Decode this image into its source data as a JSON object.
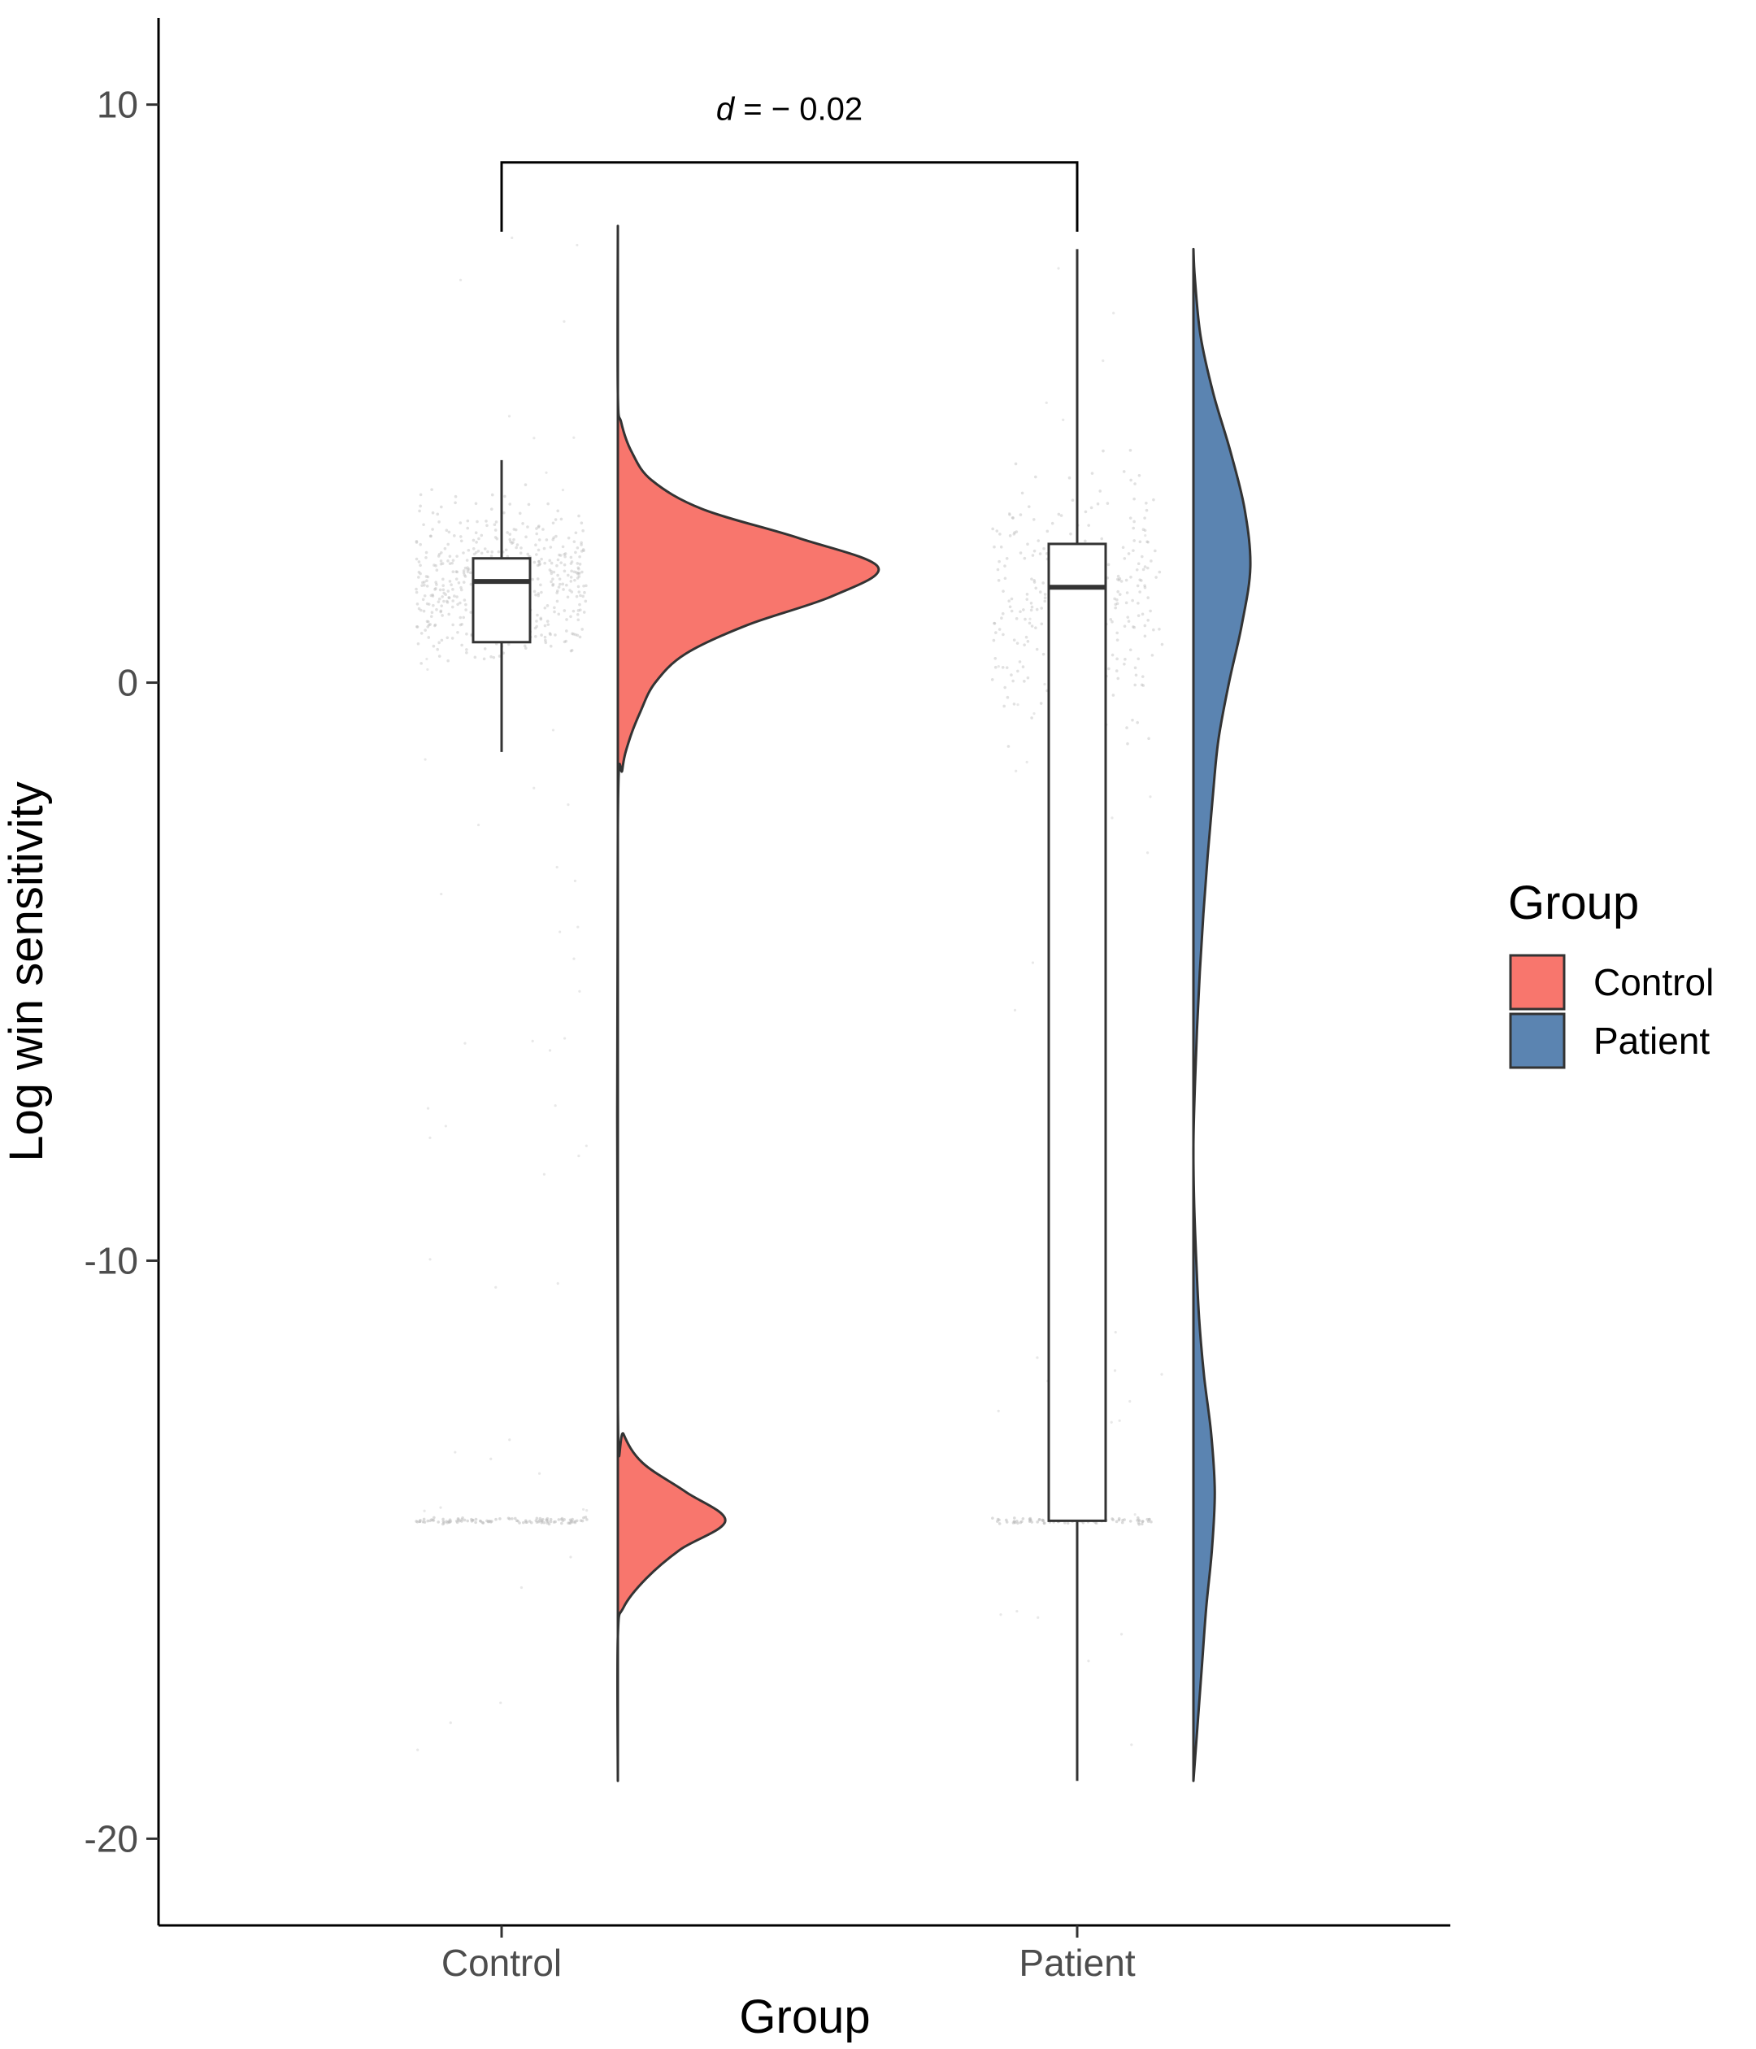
{
  "chart_data": {
    "type": "raincloud",
    "xlabel": "Group",
    "ylabel": "Log win sensitivity",
    "ylim": [
      -21.5,
      11.5
    ],
    "yticks": [
      10,
      0,
      -10,
      -20
    ],
    "ytick_labels": [
      "10",
      "0",
      "-10",
      "-20"
    ],
    "categories": [
      "Control",
      "Patient"
    ],
    "grid": false,
    "legend": {
      "title": "Group",
      "position": "right",
      "entries": [
        {
          "label": "Control",
          "color": "#F8766D"
        },
        {
          "label": "Patient",
          "color": "#5B84B1"
        }
      ]
    },
    "annotation": {
      "italic": "d",
      "rest": " = − 0.02",
      "bracket_y": 9.0,
      "bracket_drop": 7.8
    },
    "series": [
      {
        "name": "Control",
        "color": "#F8766D",
        "box": {
          "lower_whisker": -1.2,
          "q1": 0.7,
          "median": 1.75,
          "q3": 2.15,
          "upper_whisker": 3.85
        },
        "density_range": [
          -19.0,
          7.9
        ],
        "density": [
          [
            -19.0,
            0.0
          ],
          [
            -16.5,
            0.0
          ],
          [
            -16.0,
            0.05
          ],
          [
            -15.5,
            0.25
          ],
          [
            -15.0,
            0.55
          ],
          [
            -14.5,
            0.95
          ],
          [
            -14.0,
            0.6
          ],
          [
            -13.5,
            0.22
          ],
          [
            -13.0,
            0.05
          ],
          [
            -12.5,
            0.0
          ],
          [
            -2.5,
            0.0
          ],
          [
            -1.5,
            0.04
          ],
          [
            -1.0,
            0.1
          ],
          [
            -0.5,
            0.2
          ],
          [
            0.0,
            0.33
          ],
          [
            0.5,
            0.6
          ],
          [
            1.0,
            1.15
          ],
          [
            1.5,
            1.9
          ],
          [
            2.0,
            2.3
          ],
          [
            2.5,
            1.6
          ],
          [
            3.0,
            0.75
          ],
          [
            3.5,
            0.3
          ],
          [
            4.0,
            0.12
          ],
          [
            4.5,
            0.03
          ],
          [
            5.0,
            0.0
          ],
          [
            7.9,
            0.0
          ]
        ]
      },
      {
        "name": "Patient",
        "color": "#5B84B1",
        "box": {
          "lower_whisker": -19.0,
          "q1": -14.5,
          "median": 1.65,
          "q3": 2.4,
          "upper_whisker": 7.5
        },
        "density_range": [
          -19.0,
          7.5
        ],
        "density": [
          [
            -19.0,
            0.0
          ],
          [
            -18.0,
            0.06
          ],
          [
            -17.0,
            0.12
          ],
          [
            -16.0,
            0.18
          ],
          [
            -15.0,
            0.26
          ],
          [
            -14.0,
            0.3
          ],
          [
            -13.0,
            0.25
          ],
          [
            -12.0,
            0.15
          ],
          [
            -11.0,
            0.08
          ],
          [
            -10.0,
            0.04
          ],
          [
            -9.0,
            0.01
          ],
          [
            -8.0,
            0.0
          ],
          [
            -7.0,
            0.02
          ],
          [
            -6.0,
            0.05
          ],
          [
            -5.0,
            0.09
          ],
          [
            -4.0,
            0.14
          ],
          [
            -3.0,
            0.2
          ],
          [
            -2.0,
            0.27
          ],
          [
            -1.0,
            0.35
          ],
          [
            0.0,
            0.5
          ],
          [
            1.0,
            0.68
          ],
          [
            2.0,
            0.8
          ],
          [
            3.0,
            0.72
          ],
          [
            4.0,
            0.52
          ],
          [
            5.0,
            0.28
          ],
          [
            6.0,
            0.1
          ],
          [
            7.0,
            0.02
          ],
          [
            7.5,
            0.0
          ]
        ]
      }
    ]
  }
}
